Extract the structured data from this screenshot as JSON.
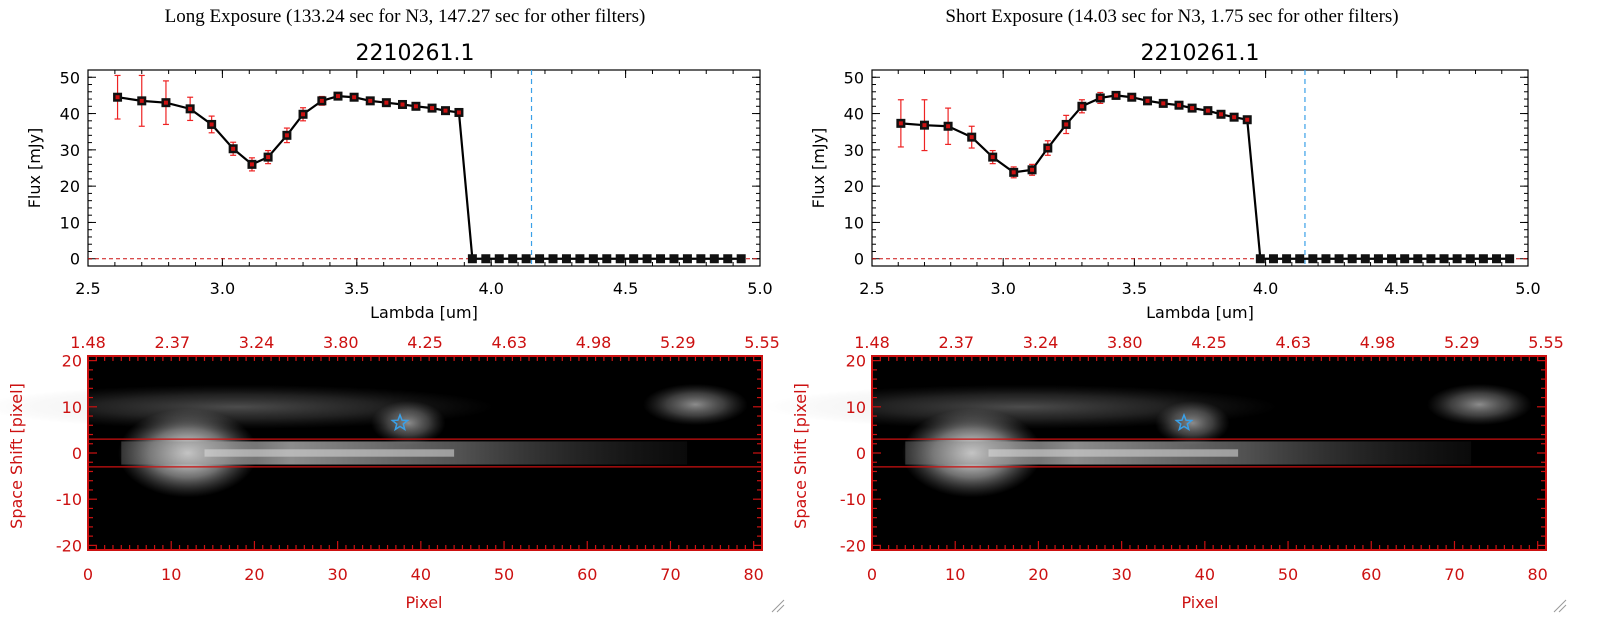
{
  "panels": [
    {
      "heading": "Long Exposure (133.24 sec for N3, 147.27 sec for other filters)",
      "chart_data": [
        {
          "type": "line",
          "title": "2210261.1",
          "xlabel": "Lambda [um]",
          "ylabel": "Flux [mJy]",
          "xlim": [
            2.5,
            5.0
          ],
          "ylim": [
            -2,
            52
          ],
          "xticks": [
            "2.5",
            "3.0",
            "3.5",
            "4.0",
            "4.5",
            "5.0"
          ],
          "yticks": [
            "0",
            "10",
            "20",
            "30",
            "40",
            "50"
          ],
          "x": [
            2.61,
            2.7,
            2.79,
            2.88,
            2.96,
            3.04,
            3.11,
            3.17,
            3.24,
            3.3,
            3.37,
            3.43,
            3.49,
            3.55,
            3.61,
            3.67,
            3.72,
            3.78,
            3.83,
            3.88,
            3.93,
            3.98,
            4.03,
            4.08,
            4.13,
            4.18,
            4.23,
            4.28,
            4.33,
            4.38,
            4.43,
            4.48,
            4.53,
            4.58,
            4.63,
            4.68,
            4.73,
            4.78,
            4.83,
            4.88,
            4.93
          ],
          "y": [
            44.5,
            43.5,
            43.0,
            41.3,
            37.0,
            30.3,
            26.0,
            28.0,
            34.0,
            39.8,
            43.5,
            44.8,
            44.5,
            43.5,
            43.0,
            42.5,
            42.0,
            41.5,
            40.8,
            40.3,
            0,
            0,
            0,
            0,
            0,
            0,
            0,
            0,
            0,
            0,
            0,
            0,
            0,
            0,
            0,
            0,
            0,
            0,
            0,
            0,
            0
          ],
          "yerr": [
            6.0,
            7.0,
            6.0,
            3.2,
            2.3,
            1.8,
            1.8,
            1.8,
            2.0,
            1.8,
            1.2,
            0.5,
            0.4,
            0.3,
            0.3,
            0.3,
            0.3,
            0.3,
            0.3,
            0.3,
            0,
            0,
            0,
            0,
            0,
            0,
            0,
            0,
            0,
            0,
            0,
            0,
            0,
            0,
            0,
            0,
            0,
            0,
            0,
            0,
            0
          ],
          "vline_x": 4.15,
          "colors": {
            "line": "#000000",
            "marker": "#cc1111",
            "error": "#ee2222",
            "vline": "#3aa0e8"
          }
        },
        {
          "type": "heatmap",
          "xlabel": "Pixel",
          "ylabel": "Space Shift [pixel]",
          "xlim": [
            0,
            81
          ],
          "ylim": [
            -21,
            21
          ],
          "xticks": [
            "0",
            "10",
            "20",
            "30",
            "40",
            "50",
            "60",
            "70",
            "80"
          ],
          "yticks": [
            "-20",
            "-10",
            "0",
            "10",
            "20"
          ],
          "top_ticks": [
            "1.48",
            "2.37",
            "3.24",
            "3.80",
            "4.25",
            "4.63",
            "4.98",
            "5.29",
            "5.55"
          ],
          "aperture": [
            -3,
            3
          ],
          "star": {
            "x": 37.5,
            "y": 6.5
          },
          "colors": {
            "axis": "#cc1111",
            "aperture": "#cc1111",
            "star": "#3aa0e8"
          }
        }
      ]
    },
    {
      "heading": "Short Exposure (14.03 sec for N3, 1.75 sec for other filters)",
      "chart_data": [
        {
          "type": "line",
          "title": "2210261.1",
          "xlabel": "Lambda [um]",
          "ylabel": "Flux [mJy]",
          "xlim": [
            2.5,
            5.0
          ],
          "ylim": [
            -2,
            52
          ],
          "xticks": [
            "2.5",
            "3.0",
            "3.5",
            "4.0",
            "4.5",
            "5.0"
          ],
          "yticks": [
            "0",
            "10",
            "20",
            "30",
            "40",
            "50"
          ],
          "x": [
            2.61,
            2.7,
            2.79,
            2.88,
            2.96,
            3.04,
            3.11,
            3.17,
            3.24,
            3.3,
            3.37,
            3.43,
            3.49,
            3.55,
            3.61,
            3.67,
            3.72,
            3.78,
            3.83,
            3.88,
            3.93,
            3.98,
            4.03,
            4.08,
            4.13,
            4.18,
            4.23,
            4.28,
            4.33,
            4.38,
            4.43,
            4.48,
            4.53,
            4.58,
            4.63,
            4.68,
            4.73,
            4.78,
            4.83,
            4.88,
            4.93
          ],
          "y": [
            37.3,
            36.8,
            36.5,
            33.5,
            28.0,
            23.8,
            24.5,
            30.5,
            37.0,
            42.0,
            44.3,
            45.0,
            44.5,
            43.5,
            42.8,
            42.3,
            41.5,
            40.8,
            39.8,
            39.0,
            38.3,
            0,
            0,
            0,
            0,
            0,
            0,
            0,
            0,
            0,
            0,
            0,
            0,
            0,
            0,
            0,
            0,
            0,
            0,
            0,
            0
          ],
          "yerr": [
            6.5,
            7.0,
            5.0,
            3.0,
            1.8,
            1.5,
            1.5,
            2.0,
            2.5,
            1.8,
            1.5,
            0.5,
            0.4,
            0.3,
            0.3,
            0.3,
            0.3,
            0.3,
            0.3,
            0.3,
            0.3,
            0,
            0,
            0,
            0,
            0,
            0,
            0,
            0,
            0,
            0,
            0,
            0,
            0,
            0,
            0,
            0,
            0,
            0,
            0,
            0
          ],
          "vline_x": 4.15,
          "colors": {
            "line": "#000000",
            "marker": "#cc1111",
            "error": "#ee2222",
            "vline": "#3aa0e8"
          }
        },
        {
          "type": "heatmap",
          "xlabel": "Pixel",
          "ylabel": "Space Shift [pixel]",
          "xlim": [
            0,
            81
          ],
          "ylim": [
            -21,
            21
          ],
          "xticks": [
            "0",
            "10",
            "20",
            "30",
            "40",
            "50",
            "60",
            "70",
            "80"
          ],
          "yticks": [
            "-20",
            "-10",
            "0",
            "10",
            "20"
          ],
          "top_ticks": [
            "1.48",
            "2.37",
            "3.24",
            "3.80",
            "4.25",
            "4.63",
            "4.98",
            "5.29",
            "5.55"
          ],
          "aperture": [
            -3,
            3
          ],
          "star": {
            "x": 37.5,
            "y": 6.5
          },
          "colors": {
            "axis": "#cc1111",
            "aperture": "#cc1111",
            "star": "#3aa0e8"
          }
        }
      ]
    }
  ]
}
